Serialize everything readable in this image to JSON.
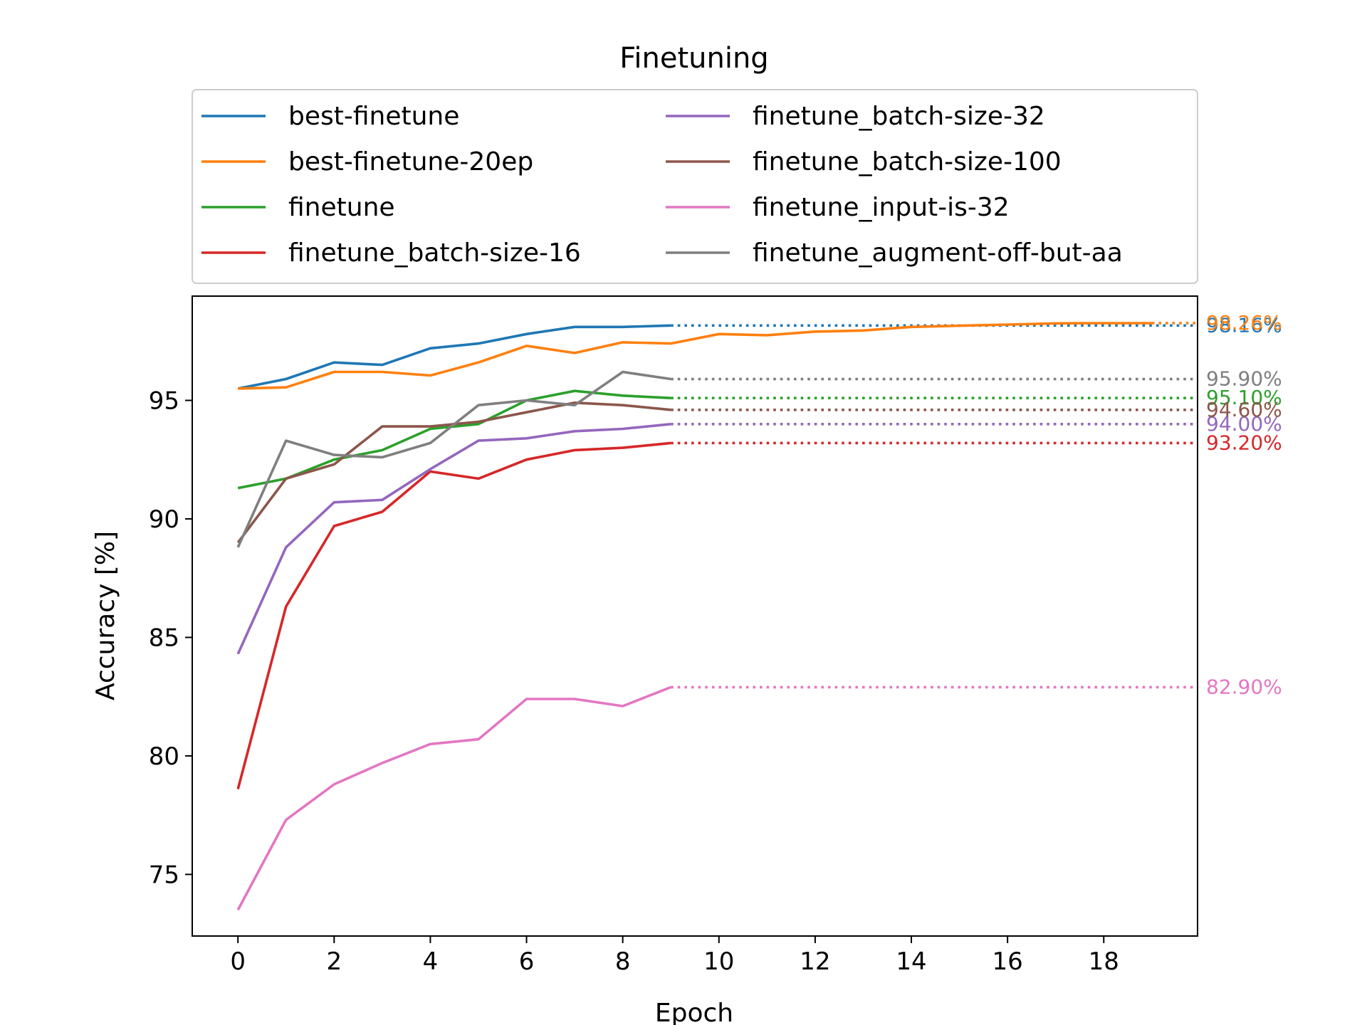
{
  "chart_data": {
    "type": "line",
    "title": "Finetuning",
    "xlabel": "Epoch",
    "ylabel": "Accuracy [%]",
    "xlim": [
      -0.95,
      19.95
    ],
    "ylim": [
      72.4,
      99.4
    ],
    "xticks": [
      "0",
      "2",
      "4",
      "6",
      "8",
      "10",
      "12",
      "14",
      "16",
      "18"
    ],
    "yticks": [
      "75",
      "80",
      "85",
      "90",
      "95"
    ],
    "grid": false,
    "legend_position": "top",
    "extension_to_x": 19.95,
    "series": [
      {
        "name": "best-finetune",
        "color": "#1f77b4",
        "x": [
          0,
          1,
          2,
          3,
          4,
          5,
          6,
          7,
          8,
          9
        ],
        "y": [
          95.5,
          95.9,
          96.6,
          96.5,
          97.2,
          97.4,
          97.8,
          98.1,
          98.1,
          98.16
        ],
        "final_label": "98.16%"
      },
      {
        "name": "best-finetune-20ep",
        "color": "#ff7f0e",
        "x": [
          0,
          1,
          2,
          3,
          4,
          5,
          6,
          7,
          8,
          9,
          10,
          11,
          12,
          13,
          14,
          15,
          16,
          17,
          18,
          19
        ],
        "y": [
          95.5,
          95.55,
          96.2,
          96.2,
          96.05,
          96.6,
          97.3,
          97.0,
          97.45,
          97.4,
          97.8,
          97.75,
          97.9,
          97.95,
          98.1,
          98.15,
          98.2,
          98.25,
          98.26,
          98.26
        ],
        "final_label": "98.26%"
      },
      {
        "name": "finetune",
        "color": "#2ca02c",
        "x": [
          0,
          1,
          2,
          3,
          4,
          5,
          6,
          7,
          8,
          9
        ],
        "y": [
          91.3,
          91.7,
          92.5,
          92.9,
          93.8,
          94.0,
          95.0,
          95.4,
          95.2,
          95.1
        ],
        "final_label": "95.10%"
      },
      {
        "name": "finetune_batch-size-16",
        "color": "#d62728",
        "x": [
          0,
          1,
          2,
          3,
          4,
          5,
          6,
          7,
          8,
          9
        ],
        "y": [
          78.6,
          86.3,
          89.7,
          90.3,
          92.0,
          91.7,
          92.5,
          92.9,
          93.0,
          93.2
        ],
        "final_label": "93.20%"
      },
      {
        "name": "finetune_batch-size-32",
        "color": "#9467bd",
        "x": [
          0,
          1,
          2,
          3,
          4,
          5,
          6,
          7,
          8,
          9
        ],
        "y": [
          84.3,
          88.8,
          90.7,
          90.8,
          92.1,
          93.3,
          93.4,
          93.7,
          93.8,
          94.0
        ],
        "final_label": "94.00%"
      },
      {
        "name": "finetune_batch-size-100",
        "color": "#8c564b",
        "x": [
          0,
          1,
          2,
          3,
          4,
          5,
          6,
          7,
          8,
          9
        ],
        "y": [
          89.0,
          91.7,
          92.3,
          93.9,
          93.9,
          94.1,
          94.5,
          94.9,
          94.8,
          94.6
        ],
        "final_label": "94.60%"
      },
      {
        "name": "finetune_input-is-32",
        "color": "#e377c2",
        "x": [
          0,
          1,
          2,
          3,
          4,
          5,
          6,
          7,
          8,
          9
        ],
        "y": [
          73.5,
          77.3,
          78.8,
          79.7,
          80.5,
          80.7,
          82.4,
          82.4,
          82.1,
          82.9
        ],
        "final_label": "82.90%"
      },
      {
        "name": "finetune_augment-off-but-aa",
        "color": "#7f7f7f",
        "x": [
          0,
          1,
          2,
          3,
          4,
          5,
          6,
          7,
          8,
          9
        ],
        "y": [
          88.8,
          93.3,
          92.7,
          92.6,
          93.2,
          94.8,
          95.0,
          94.8,
          96.2,
          95.9
        ],
        "final_label": "95.90%"
      }
    ]
  }
}
